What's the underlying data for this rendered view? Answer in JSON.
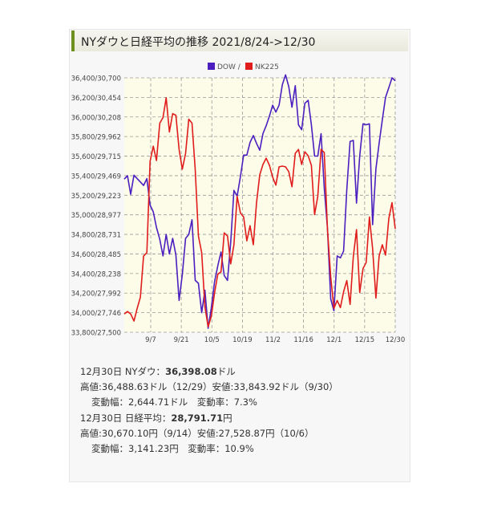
{
  "title": "NYダウと日経平均の推移 2021/8/24->12/30",
  "colors": {
    "dow": "#4b1fbf",
    "nk": "#e01c1c",
    "plot_bg": "#fdfce8",
    "grid": "#9a9a9a"
  },
  "chart_data": {
    "type": "line",
    "legend": [
      "DOW",
      "NK225"
    ],
    "legend_separator": "/",
    "legend_position": "top-center",
    "y_tick_labels": [
      "36,400/30,700",
      "36,200/30,454",
      "36,000/30,208",
      "35,800/29,962",
      "35,600/29,715",
      "35,400/29,469",
      "35,200/29,223",
      "35,000/28,977",
      "34,800/28,731",
      "34,600/28,485",
      "34,400/28,238",
      "34,200/27,992",
      "34,000/27,746",
      "33,800/27,500"
    ],
    "x_tick_labels": [
      "9/7",
      "9/21",
      "10/5",
      "10/19",
      "11/2",
      "11/16",
      "12/1",
      "12/15",
      "12/30"
    ],
    "y_axis": {
      "dow_range": [
        33800,
        36400
      ],
      "nk_range": [
        27500,
        30700
      ]
    },
    "grid": true,
    "series": [
      {
        "name": "DOW",
        "values": [
          35365,
          35400,
          35210,
          35405,
          35370,
          35335,
          35300,
          35370,
          35100,
          35030,
          34870,
          34750,
          34580,
          34800,
          34600,
          34760,
          34590,
          34125,
          34390,
          34760,
          34800,
          34950,
          34330,
          34300,
          34000,
          34230,
          33840,
          34050,
          34320,
          34480,
          34620,
          34380,
          34330,
          34720,
          35250,
          35190,
          35390,
          35610,
          35610,
          35740,
          35810,
          35730,
          35660,
          35830,
          35910,
          36010,
          36120,
          36050,
          36120,
          36330,
          36430,
          36310,
          36100,
          36320,
          35920,
          35870,
          36140,
          36170,
          35920,
          35600,
          35600,
          35830,
          35270,
          34860,
          34140,
          34020,
          34580,
          34560,
          34630,
          35260,
          35750,
          35760,
          35120,
          35600,
          35930,
          35920,
          35930,
          34900,
          35470,
          35730,
          35970,
          36200,
          36300,
          36400,
          36370
        ]
      },
      {
        "name": "NK225",
        "values": [
          27730,
          27760,
          27730,
          27640,
          27800,
          27940,
          28460,
          28500,
          29650,
          29840,
          29660,
          30130,
          30200,
          30450,
          30020,
          30250,
          30230,
          29800,
          29550,
          29750,
          30180,
          30130,
          29550,
          28710,
          28500,
          27820,
          27570,
          27700,
          28000,
          28230,
          28260,
          28750,
          28710,
          28360,
          28600,
          29210,
          29000,
          28950,
          28650,
          28840,
          28600,
          29130,
          29480,
          29610,
          29690,
          29600,
          29450,
          29350,
          29580,
          29590,
          29580,
          29520,
          29330,
          29750,
          29800,
          29610,
          29770,
          29720,
          29600,
          28980,
          29210,
          29800,
          29760,
          28790,
          28200,
          27800,
          27900,
          27810,
          28010,
          28150,
          27850,
          28450,
          28790,
          28000,
          28300,
          28380,
          28950,
          28550,
          27930,
          28460,
          28600,
          28470,
          28930,
          29130,
          28800
        ]
      }
    ]
  },
  "stats": {
    "dow_line": {
      "label": "12月30日 NYダウ：",
      "value": "36,398.08",
      "unit": "ドル"
    },
    "dow_hl": "高値:36,488.63ドル（12/29）安値:33,843.92ドル（9/30）",
    "dow_change": "変動幅：2,644.71ドル　変動率：7.3%",
    "nk_line": {
      "label": "12月30日 日経平均：",
      "value": "28,791.71",
      "unit": "円"
    },
    "nk_hl": "高値:30,670.10円（9/14）安値:27,528.87円（10/6）",
    "nk_change": "変動幅：3,141.23円　変動率：10.9%"
  }
}
